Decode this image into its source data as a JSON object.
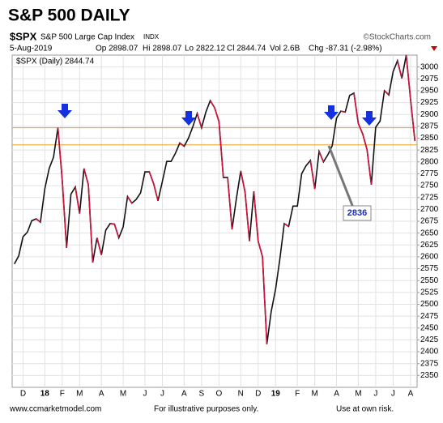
{
  "chart_data": {
    "type": "line",
    "title": "S&P 500 DAILY",
    "symbol": "$SPX",
    "index_name": "S&P 500 Large Cap Index",
    "exchange": "INDX",
    "source": "©StockCharts.com",
    "date": "5-Aug-2019",
    "stats": [
      "Op 2898.07",
      "Hi 2898.07",
      "Lo 2822.12",
      "Cl 2844.74",
      "Vol 2.6B",
      "Chg -87.31 (-2.98%)"
    ],
    "legend": "$SPX (Daily) 2844.74",
    "annotation": "2836",
    "footer": [
      "www.ccmarketmodel.com",
      "For illustrative purposes only.",
      "Use at own risk."
    ],
    "categories": [
      null,
      null,
      "D",
      null,
      null,
      null,
      null,
      "18",
      null,
      null,
      null,
      "F",
      null,
      null,
      null,
      "M",
      null,
      null,
      null,
      null,
      "A",
      null,
      null,
      null,
      null,
      "M",
      null,
      null,
      null,
      null,
      "J",
      null,
      null,
      null,
      "J",
      null,
      null,
      null,
      null,
      "A",
      null,
      null,
      null,
      "S",
      null,
      null,
      null,
      "O",
      null,
      null,
      null,
      null,
      "N",
      null,
      null,
      null,
      "D",
      null,
      null,
      null,
      "19",
      null,
      null,
      null,
      null,
      "F",
      null,
      null,
      null,
      "M",
      null,
      null,
      null,
      null,
      "A",
      null,
      null,
      null,
      null,
      "M",
      null,
      null,
      null,
      "J",
      null,
      null,
      null,
      "J",
      null,
      null,
      null,
      "A",
      null
    ],
    "values": [
      2585,
      2602,
      2642,
      2652,
      2676,
      2680,
      2673,
      2743,
      2786,
      2810,
      2872,
      2762,
      2619,
      2732,
      2747,
      2691,
      2786,
      2752,
      2588,
      2640,
      2604,
      2656,
      2670,
      2669,
      2640,
      2663,
      2727,
      2713,
      2721,
      2735,
      2779,
      2779,
      2754,
      2718,
      2759,
      2801,
      2801,
      2818,
      2840,
      2833,
      2850,
      2874,
      2902,
      2872,
      2905,
      2929,
      2914,
      2885,
      2767,
      2767,
      2658,
      2723,
      2781,
      2736,
      2633,
      2738,
      2633,
      2600,
      2416,
      2485,
      2532,
      2596,
      2670,
      2664,
      2707,
      2707,
      2775,
      2792,
      2803,
      2743,
      2822,
      2800,
      2815,
      2834,
      2892,
      2907,
      2905,
      2940,
      2945,
      2881,
      2859,
      2826,
      2752,
      2873,
      2886,
      2950,
      2941,
      2990,
      3013,
      2976,
      3025,
      2932,
      2844
    ],
    "color": "#111111",
    "hlines": [
      2872,
      2836
    ],
    "hline_color": "#e8a030",
    "ylim": [
      2325,
      3025
    ],
    "yticks": [
      2350,
      2375,
      2400,
      2425,
      2450,
      2475,
      2500,
      2525,
      2550,
      2575,
      2600,
      2625,
      2650,
      2675,
      2700,
      2725,
      2750,
      2775,
      2800,
      2825,
      2850,
      2875,
      2900,
      2925,
      2950,
      2975,
      3000
    ],
    "grid": true
  }
}
